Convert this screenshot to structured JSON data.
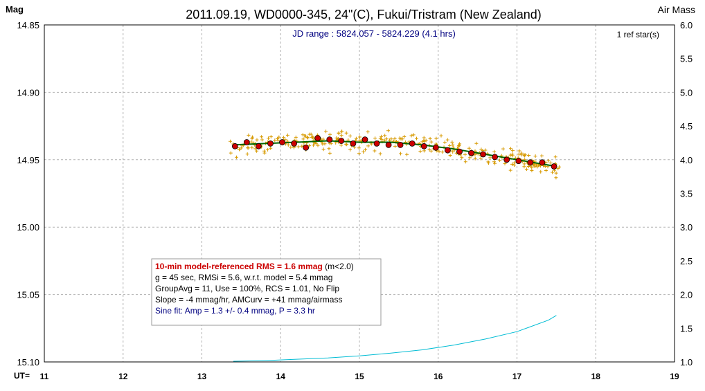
{
  "chart_data": {
    "type": "scatter",
    "title": "2011.09.19, WD0000-345, 24\"(C), Fukui/Tristram (New Zealand)",
    "ylabel": "Mag",
    "y2label": "Air Mass",
    "xlabel": "UT=",
    "subtitle": "JD range : 5824.057 - 5824.229 (4.1 hrs)",
    "ref_label": "1 ref star(s)",
    "xlim": [
      11,
      19
    ],
    "ylim": [
      14.85,
      15.1
    ],
    "y_inverted": true,
    "y2lim": [
      1.0,
      6.0
    ],
    "grid": true,
    "x_ticks": [
      "11",
      "12",
      "13",
      "14",
      "15",
      "16",
      "17",
      "18",
      "19"
    ],
    "y_ticks": [
      "14.85",
      "14.90",
      "14.95",
      "15.00",
      "15.05",
      "15.10"
    ],
    "y2_ticks": [
      "6.0",
      "5.5",
      "5.0",
      "4.5",
      "4.0",
      "3.5",
      "3.0",
      "2.5",
      "2.0",
      "1.5",
      "1.0"
    ],
    "colors": {
      "raw": "#d79a00",
      "group": "#cc0000",
      "fit": "#006600",
      "airmass": "#00bcd4",
      "note_blue": "#000080",
      "note_red": "#cc0000"
    },
    "series": [
      {
        "kind": "group_avg",
        "x": [
          13.42,
          13.57,
          13.72,
          13.87,
          14.02,
          14.17,
          14.32,
          14.47,
          14.62,
          14.77,
          14.92,
          15.07,
          15.22,
          15.37,
          15.52,
          15.67,
          15.82,
          15.97,
          16.12,
          16.27,
          16.42,
          16.57,
          16.72,
          16.87,
          17.02,
          17.17,
          17.32,
          17.47
        ],
        "y": [
          14.94,
          14.937,
          14.94,
          14.938,
          14.937,
          14.938,
          14.941,
          14.934,
          14.935,
          14.936,
          14.938,
          14.935,
          14.938,
          14.939,
          14.939,
          14.938,
          14.94,
          14.941,
          14.943,
          14.944,
          14.945,
          14.946,
          14.948,
          14.95,
          14.951,
          14.952,
          14.952,
          14.955
        ]
      },
      {
        "kind": "model_fit",
        "x": [
          13.4,
          13.8,
          14.2,
          14.6,
          15.0,
          15.4,
          15.8,
          16.2,
          16.6,
          17.0,
          17.5
        ],
        "y": [
          14.939,
          14.938,
          14.937,
          14.936,
          14.937,
          14.937,
          14.939,
          14.942,
          14.946,
          14.95,
          14.955
        ]
      },
      {
        "kind": "airmass",
        "axis": "right",
        "x": [
          13.4,
          13.8,
          14.2,
          14.6,
          15.0,
          15.4,
          15.8,
          16.2,
          16.6,
          17.0,
          17.4,
          17.5
        ],
        "y": [
          1.01,
          1.02,
          1.04,
          1.06,
          1.09,
          1.13,
          1.18,
          1.25,
          1.34,
          1.45,
          1.62,
          1.69
        ]
      }
    ],
    "raw_spread_mag": 0.006
  },
  "info_box": {
    "line1_bold": "10-min model-referenced RMS = 1.6 mmag",
    "line1_rest": " (m<2.0)",
    "line2": "g = 45 sec, RMSi = 5.6, w.r.t. model = 5.4 mmag",
    "line3": "GroupAvg = 11, Use = 100%, RCS = 1.01, No Flip",
    "line4": "Slope = -4 mmag/hr, AMCurv = +41 mmag/airmass",
    "line5": "Sine fit: Amp = 1.3 +/- 0.4 mmag, P = 3.3 hr"
  }
}
